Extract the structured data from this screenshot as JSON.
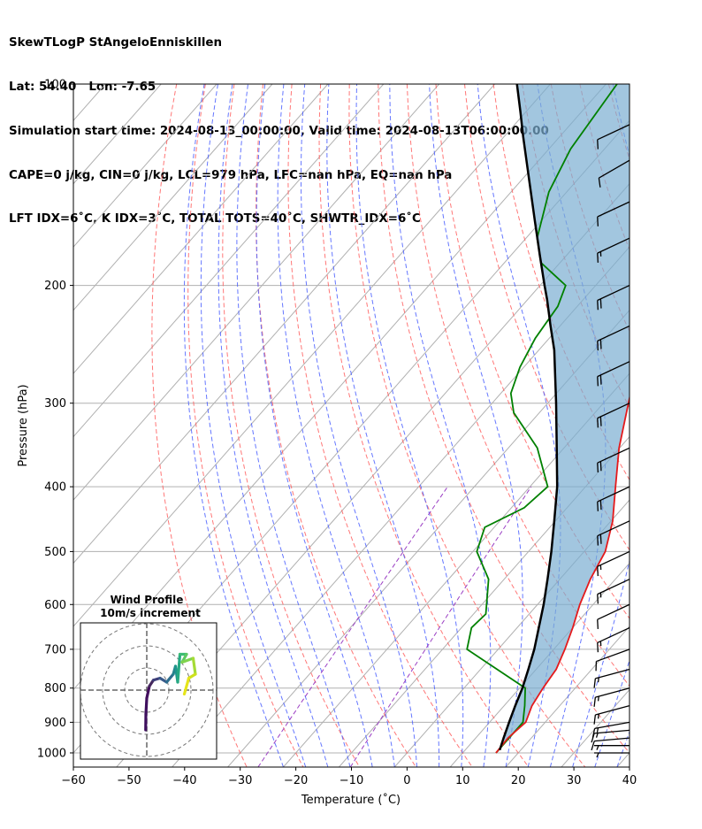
{
  "header": {
    "line1": "SkewTLogP StAngeloEnniskillen",
    "line2": "Lat: 54.40   Lon: -7.65",
    "line3": "Simulation start time: 2024-08-13_00:00:00, Valid time: 2024-08-13T06:00:00.00",
    "line4": "CAPE=0 j/kg, CIN=0 j/kg, LCL=979 hPa, LFC=nan hPa, EQ=nan hPa",
    "line5": "LFT IDX=6˚C, K IDX=3˚C, TOTAL TOTS=40˚C, SHWTR_IDX=6˚C"
  },
  "chart_data": {
    "type": "skewt",
    "xlabel": "Temperature (˚C)",
    "ylabel": "Pressure (hPa)",
    "xlim": [
      -60,
      40
    ],
    "ylim": [
      1050,
      100
    ],
    "x_ticks": [
      -60,
      -50,
      -40,
      -30,
      -20,
      -10,
      0,
      10,
      20,
      30,
      40
    ],
    "y_ticks": [
      1000,
      900,
      800,
      700,
      600,
      500,
      400,
      300,
      200,
      100
    ],
    "grid": true,
    "colors": {
      "temperature": "#e41a1c",
      "dewpoint": "#008000",
      "parcel": "#000000",
      "cin_shade": "#7aaed2",
      "dry_adiabat": "#ff5f5f",
      "moist_adiabat": "#4a5fff",
      "mixing_ratio": "#9b3fc4",
      "isotherm_lightblue": "#6677ee",
      "isotherm_gray": "#b0b0b0"
    },
    "series": [
      {
        "name": "Temperature",
        "points": [
          [
            16,
            1000
          ],
          [
            15.8,
            950
          ],
          [
            16.5,
            900
          ],
          [
            15.0,
            850
          ],
          [
            14.2,
            800
          ],
          [
            13.6,
            750
          ],
          [
            12.0,
            700
          ],
          [
            10.0,
            650
          ],
          [
            7.6,
            600
          ],
          [
            5.5,
            550
          ],
          [
            3.8,
            500
          ],
          [
            0.3,
            450
          ],
          [
            -4.6,
            400
          ],
          [
            -10.1,
            350
          ],
          [
            -15.5,
            300
          ],
          [
            -21.8,
            250
          ],
          [
            -25.4,
            230
          ],
          [
            -27.7,
            210
          ],
          [
            -29.0,
            200
          ],
          [
            -33.6,
            180
          ],
          [
            -37.5,
            160
          ],
          [
            -42.6,
            140
          ],
          [
            -46.0,
            120
          ],
          [
            -48.8,
            110
          ],
          [
            -50.2,
            100
          ]
        ]
      },
      {
        "name": "Dewpoint",
        "points": [
          [
            16,
            1000
          ],
          [
            16,
            900
          ],
          [
            13.7,
            850
          ],
          [
            11.0,
            800
          ],
          [
            -5.6,
            700
          ],
          [
            -8.2,
            650
          ],
          [
            -7.8,
            620
          ],
          [
            -12.8,
            550
          ],
          [
            -19.3,
            500
          ],
          [
            -21.7,
            460
          ],
          [
            -17.7,
            430
          ],
          [
            -16.8,
            400
          ],
          [
            -24.8,
            350
          ],
          [
            -34.6,
            310
          ],
          [
            -38.2,
            290
          ],
          [
            -40.7,
            265
          ],
          [
            -42.5,
            240
          ],
          [
            -43.5,
            215
          ],
          [
            -45.4,
            200
          ],
          [
            -53.4,
            185
          ],
          [
            -58.0,
            170
          ],
          [
            -63.2,
            145
          ],
          [
            -66.1,
            125
          ],
          [
            -68.0,
            100
          ]
        ]
      },
      {
        "name": "Parcel",
        "points": [
          [
            16.2,
            990
          ],
          [
            15,
            950
          ],
          [
            13.5,
            900
          ],
          [
            12,
            850
          ],
          [
            10.5,
            800
          ],
          [
            8.6,
            750
          ],
          [
            6.5,
            700
          ],
          [
            3.9,
            650
          ],
          [
            1.1,
            600
          ],
          [
            -2.2,
            550
          ],
          [
            -5.9,
            500
          ],
          [
            -10.2,
            450
          ],
          [
            -15.1,
            400
          ],
          [
            -21.3,
            350
          ],
          [
            -28.5,
            300
          ],
          [
            -37.2,
            250
          ],
          [
            -41.7,
            230
          ],
          [
            -46.5,
            210
          ],
          [
            -49.2,
            200
          ],
          [
            -54.9,
            180
          ],
          [
            -61.2,
            160
          ],
          [
            -68.3,
            140
          ],
          [
            -76.5,
            120
          ],
          [
            -81.0,
            110
          ],
          [
            -86.0,
            100
          ]
        ]
      }
    ],
    "wind_barbs": [
      {
        "p": 1000,
        "dir": 270,
        "speed": 8
      },
      {
        "p": 975,
        "dir": 270,
        "speed": 8
      },
      {
        "p": 950,
        "dir": 265,
        "speed": 10
      },
      {
        "p": 925,
        "dir": 265,
        "speed": 15
      },
      {
        "p": 900,
        "dir": 260,
        "speed": 15
      },
      {
        "p": 850,
        "dir": 255,
        "speed": 15
      },
      {
        "p": 800,
        "dir": 255,
        "speed": 15
      },
      {
        "p": 750,
        "dir": 255,
        "speed": 15
      },
      {
        "p": 700,
        "dir": 250,
        "speed": 10
      },
      {
        "p": 650,
        "dir": 245,
        "speed": 15
      },
      {
        "p": 600,
        "dir": 245,
        "speed": 10
      },
      {
        "p": 550,
        "dir": 245,
        "speed": 15
      },
      {
        "p": 500,
        "dir": 245,
        "speed": 15
      },
      {
        "p": 450,
        "dir": 245,
        "speed": 20
      },
      {
        "p": 400,
        "dir": 245,
        "speed": 20
      },
      {
        "p": 350,
        "dir": 245,
        "speed": 20
      },
      {
        "p": 300,
        "dir": 245,
        "speed": 20
      },
      {
        "p": 260,
        "dir": 245,
        "speed": 20
      },
      {
        "p": 230,
        "dir": 245,
        "speed": 20
      },
      {
        "p": 200,
        "dir": 245,
        "speed": 20
      },
      {
        "p": 170,
        "dir": 245,
        "speed": 15
      },
      {
        "p": 150,
        "dir": 245,
        "speed": 10
      },
      {
        "p": 130,
        "dir": 240,
        "speed": 10
      },
      {
        "p": 115,
        "dir": 245,
        "speed": 10
      }
    ],
    "inset": {
      "title": "Wind Profile",
      "subtitle": "10m/s increment",
      "hodograph": [
        [
          -0.05,
          -1.0
        ],
        [
          -0.04,
          -0.6
        ],
        [
          0.0,
          -0.2
        ],
        [
          0.12,
          0.1
        ],
        [
          0.3,
          0.25
        ],
        [
          0.6,
          0.3
        ],
        [
          0.9,
          0.2
        ],
        [
          1.2,
          0.4
        ],
        [
          1.3,
          0.6
        ],
        [
          1.4,
          0.2
        ],
        [
          1.5,
          0.9
        ],
        [
          1.8,
          0.9
        ],
        [
          1.6,
          0.7
        ],
        [
          2.1,
          0.8
        ],
        [
          2.2,
          0.4
        ],
        [
          1.9,
          0.3
        ],
        [
          1.7,
          -0.1
        ]
      ]
    }
  }
}
